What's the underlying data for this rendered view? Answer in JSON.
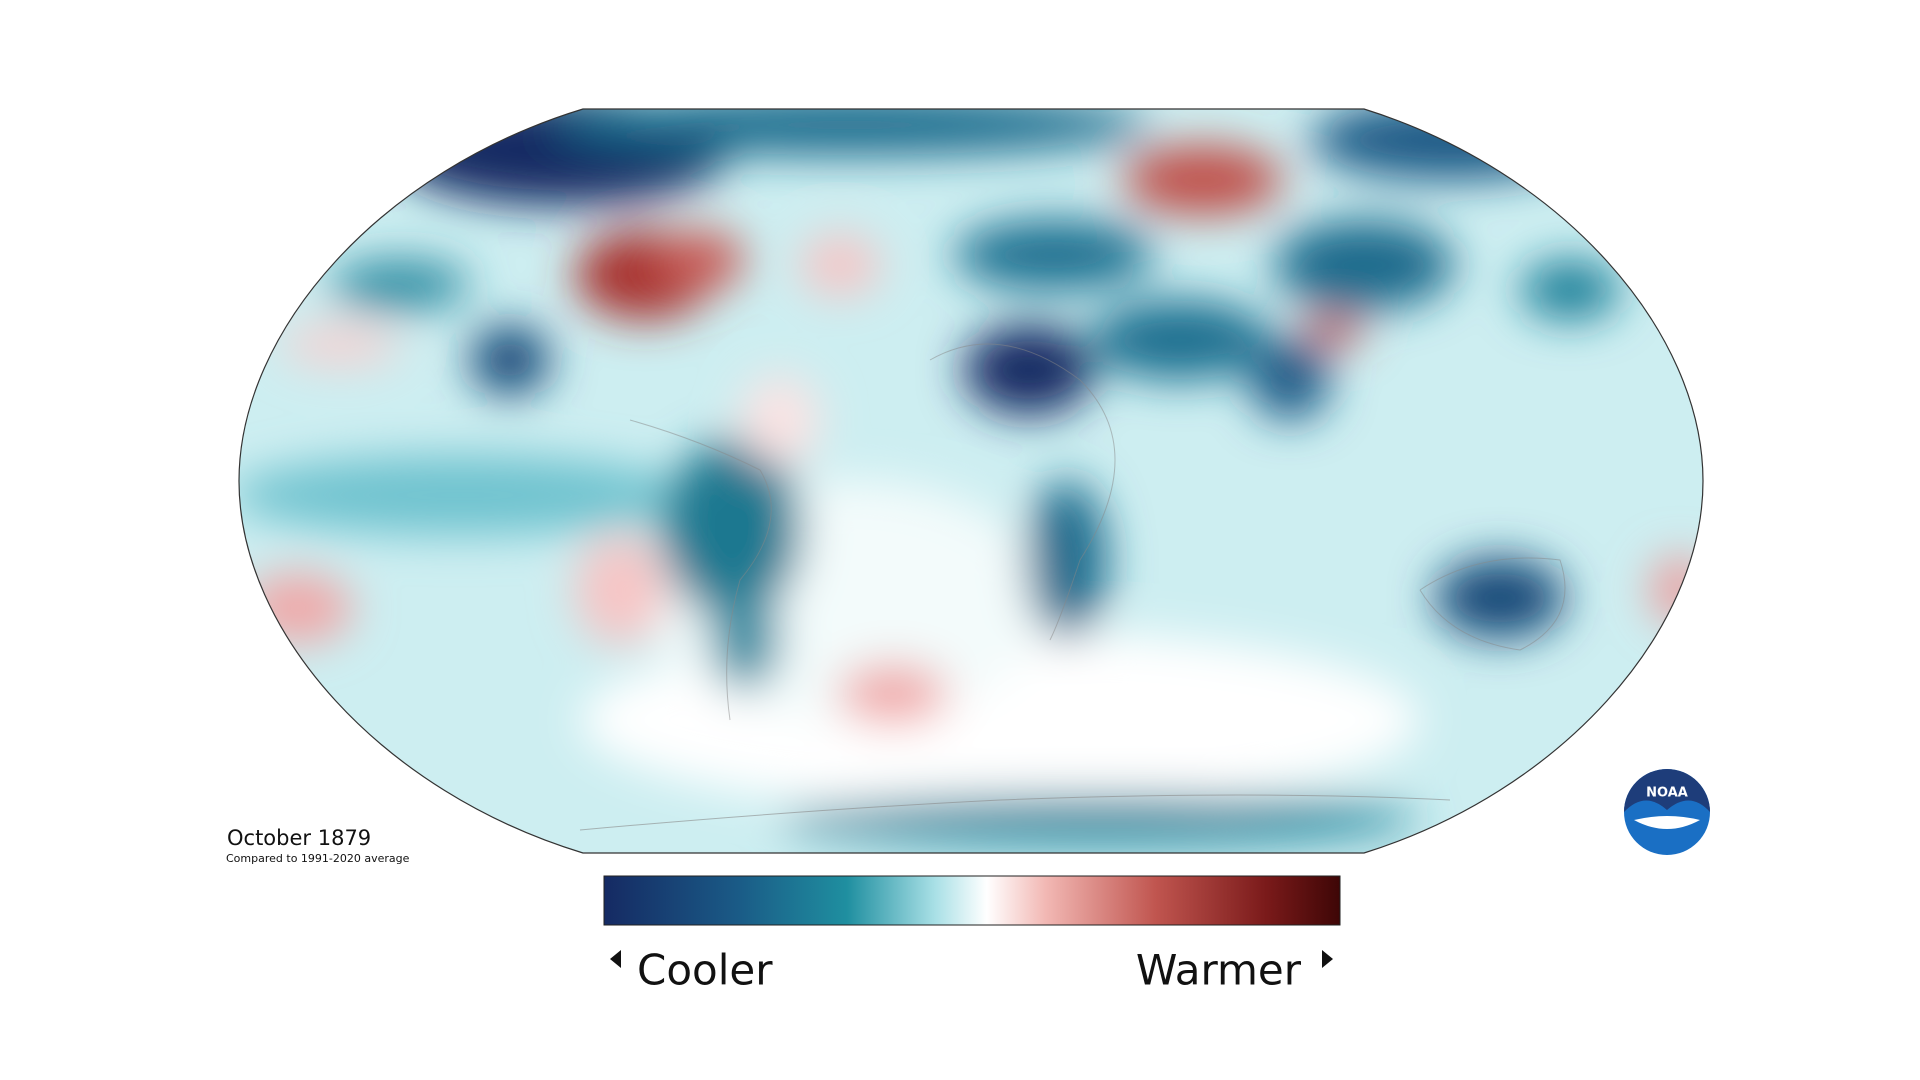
{
  "map": {
    "title": "October 1879",
    "subtitle": "Compared to 1991-2020 average"
  },
  "legend": {
    "low_label": "Cooler",
    "high_label": "Warmer"
  },
  "logo": {
    "text": "NOAA"
  }
}
